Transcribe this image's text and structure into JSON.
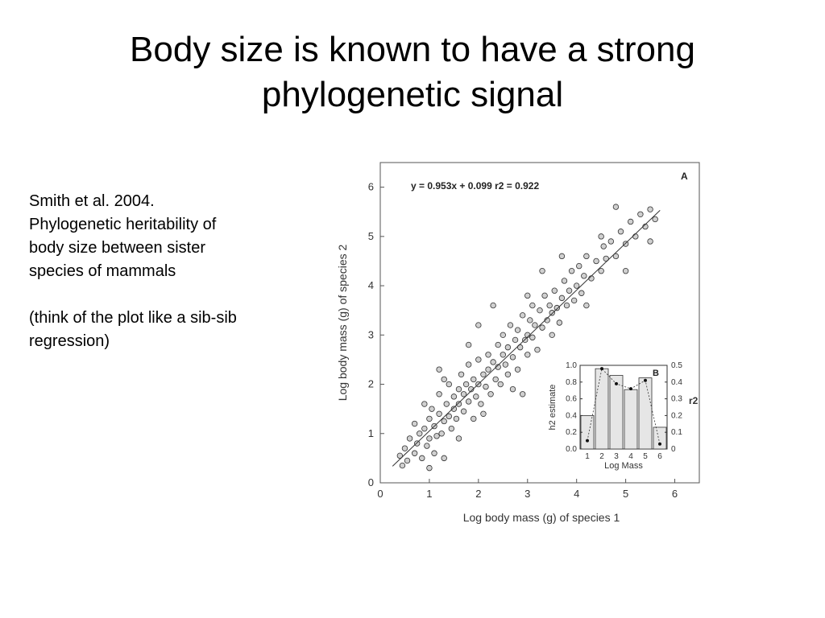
{
  "slide": {
    "title_line1": "Body size is known to have a strong",
    "title_line2": "phylogenetic signal"
  },
  "caption": {
    "lines_para1": [
      "Smith et al. 2004.",
      "Phylogenetic heritability of",
      "body size between sister",
      "species of mammals"
    ],
    "lines_para2": [
      "(think of the plot like a sib-sib",
      "regression)"
    ]
  },
  "chart_data": [
    {
      "type": "scatter",
      "panel_label": "A",
      "title": "",
      "equation": "y = 0.953x + 0.099  r2 = 0.922",
      "xlabel": "Log body mass (g) of species 1",
      "ylabel": "Log body mass (g) of species 2",
      "xlim": [
        0,
        6.5
      ],
      "ylim": [
        0,
        6.5
      ],
      "x_ticks": [
        "0",
        "1",
        "2",
        "3",
        "4",
        "5",
        "6"
      ],
      "y_ticks": [
        "0",
        "1",
        "2",
        "3",
        "4",
        "5",
        "6"
      ],
      "regression": {
        "slope": 0.953,
        "intercept": 0.099,
        "x_range": [
          0.25,
          5.7
        ]
      },
      "points": [
        [
          0.4,
          0.55
        ],
        [
          0.5,
          0.7
        ],
        [
          0.55,
          0.45
        ],
        [
          0.6,
          0.9
        ],
        [
          0.7,
          0.6
        ],
        [
          0.7,
          1.2
        ],
        [
          0.75,
          0.8
        ],
        [
          0.8,
          1.0
        ],
        [
          0.85,
          0.5
        ],
        [
          0.9,
          1.1
        ],
        [
          0.95,
          0.75
        ],
        [
          1.0,
          1.3
        ],
        [
          1.0,
          0.9
        ],
        [
          1.05,
          1.5
        ],
        [
          1.1,
          0.6
        ],
        [
          1.1,
          1.15
        ],
        [
          1.15,
          0.95
        ],
        [
          1.2,
          1.4
        ],
        [
          1.2,
          1.8
        ],
        [
          1.25,
          1.0
        ],
        [
          1.3,
          1.25
        ],
        [
          1.3,
          0.5
        ],
        [
          1.35,
          1.6
        ],
        [
          1.4,
          1.35
        ],
        [
          1.4,
          2.0
        ],
        [
          1.45,
          1.1
        ],
        [
          1.5,
          1.5
        ],
        [
          1.5,
          1.75
        ],
        [
          1.55,
          1.3
        ],
        [
          1.6,
          1.9
        ],
        [
          1.6,
          1.6
        ],
        [
          1.65,
          2.2
        ],
        [
          1.7,
          1.45
        ],
        [
          1.7,
          1.8
        ],
        [
          1.75,
          2.0
        ],
        [
          1.8,
          1.65
        ],
        [
          1.8,
          2.4
        ],
        [
          1.85,
          1.9
        ],
        [
          1.9,
          1.3
        ],
        [
          1.9,
          2.1
        ],
        [
          1.95,
          1.75
        ],
        [
          2.0,
          2.0
        ],
        [
          2.0,
          2.5
        ],
        [
          2.05,
          1.6
        ],
        [
          2.1,
          2.2
        ],
        [
          2.15,
          1.95
        ],
        [
          2.2,
          2.6
        ],
        [
          2.2,
          2.3
        ],
        [
          2.25,
          1.8
        ],
        [
          2.3,
          2.45
        ],
        [
          2.35,
          2.1
        ],
        [
          2.4,
          2.8
        ],
        [
          2.4,
          2.35
        ],
        [
          2.45,
          2.0
        ],
        [
          2.5,
          2.6
        ],
        [
          2.5,
          3.0
        ],
        [
          2.55,
          2.4
        ],
        [
          2.6,
          2.2
        ],
        [
          2.6,
          2.75
        ],
        [
          2.65,
          3.2
        ],
        [
          2.7,
          2.55
        ],
        [
          2.75,
          2.9
        ],
        [
          2.8,
          2.3
        ],
        [
          2.8,
          3.1
        ],
        [
          2.85,
          2.75
        ],
        [
          2.9,
          3.4
        ],
        [
          2.95,
          2.9
        ],
        [
          3.0,
          3.0
        ],
        [
          3.0,
          2.6
        ],
        [
          3.05,
          3.3
        ],
        [
          3.1,
          3.6
        ],
        [
          3.1,
          2.95
        ],
        [
          3.15,
          3.2
        ],
        [
          3.2,
          2.7
        ],
        [
          3.25,
          3.5
        ],
        [
          3.3,
          3.15
        ],
        [
          3.35,
          3.8
        ],
        [
          3.4,
          3.3
        ],
        [
          3.45,
          3.6
        ],
        [
          3.5,
          3.0
        ],
        [
          3.5,
          3.45
        ],
        [
          3.55,
          3.9
        ],
        [
          3.6,
          3.55
        ],
        [
          3.65,
          3.25
        ],
        [
          3.7,
          3.75
        ],
        [
          3.75,
          4.1
        ],
        [
          3.8,
          3.6
        ],
        [
          3.85,
          3.9
        ],
        [
          3.9,
          4.3
        ],
        [
          3.95,
          3.7
        ],
        [
          4.0,
          4.0
        ],
        [
          4.05,
          4.4
        ],
        [
          4.1,
          3.85
        ],
        [
          4.15,
          4.2
        ],
        [
          4.2,
          4.6
        ],
        [
          4.3,
          4.15
        ],
        [
          4.4,
          4.5
        ],
        [
          4.5,
          4.3
        ],
        [
          4.55,
          4.8
        ],
        [
          4.6,
          4.55
        ],
        [
          4.7,
          4.9
        ],
        [
          4.8,
          4.6
        ],
        [
          4.9,
          5.1
        ],
        [
          5.0,
          4.85
        ],
        [
          5.1,
          5.3
        ],
        [
          5.2,
          5.0
        ],
        [
          5.3,
          5.45
        ],
        [
          5.4,
          5.2
        ],
        [
          5.5,
          5.55
        ],
        [
          5.6,
          5.35
        ],
        [
          0.45,
          0.35
        ],
        [
          0.9,
          1.6
        ],
        [
          1.3,
          2.1
        ],
        [
          1.0,
          0.3
        ],
        [
          1.6,
          0.9
        ],
        [
          2.3,
          3.6
        ],
        [
          2.9,
          1.8
        ],
        [
          3.3,
          4.3
        ],
        [
          4.5,
          5.0
        ],
        [
          5.0,
          4.3
        ],
        [
          1.8,
          2.8
        ],
        [
          2.1,
          1.4
        ],
        [
          3.7,
          4.6
        ],
        [
          4.8,
          5.6
        ],
        [
          3.0,
          3.8
        ],
        [
          2.0,
          3.2
        ],
        [
          1.2,
          2.3
        ],
        [
          4.2,
          3.6
        ],
        [
          5.5,
          4.9
        ],
        [
          2.7,
          1.9
        ]
      ]
    },
    {
      "type": "bar",
      "panel_label": "B",
      "title": "",
      "xlabel": "Log Mass",
      "ylabel": "h2 estimate",
      "y2label": "r2",
      "categories": [
        "1",
        "2",
        "3",
        "4",
        "5",
        "6"
      ],
      "values": [
        0.4,
        0.96,
        0.88,
        0.71,
        0.85,
        0.26
      ],
      "line_values_r2": [
        0.05,
        0.48,
        0.39,
        0.36,
        0.41,
        0.03
      ],
      "ylim": [
        0,
        1.0
      ],
      "y2lim": [
        0,
        0.5
      ],
      "y_ticks": [
        "0.0",
        "0.2",
        "0.4",
        "0.6",
        "0.8",
        "1.0"
      ],
      "y2_ticks": [
        "0",
        "0.1",
        "0.2",
        "0.3",
        "0.4",
        "0.5"
      ]
    }
  ]
}
